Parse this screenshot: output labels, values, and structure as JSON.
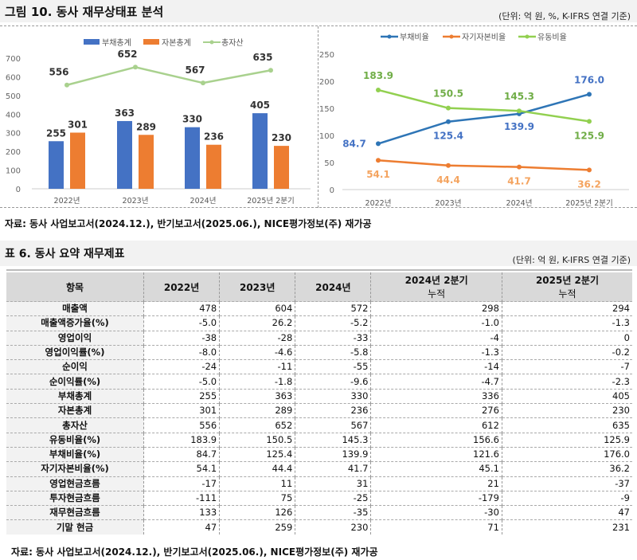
{
  "figure": {
    "title": "그림 10. 동사 재무상태표 분석",
    "unit": "(단위: 억 원, %, K-IFRS 연결 기준)",
    "source": "자료: 동사 사업보고서(2024.12.), 반기보고서(2025.06.), NICE평가정보(주) 재가공"
  },
  "chart_data": [
    {
      "type": "bar+line",
      "categories": [
        "2022년",
        "2023년",
        "2024년",
        "2025년 2분기"
      ],
      "ylim": [
        0,
        700
      ],
      "yticks": [
        0,
        100,
        200,
        300,
        400,
        500,
        600,
        700
      ],
      "legend": "top",
      "grid": false,
      "series": [
        {
          "name": "부채총계",
          "type": "bar",
          "color": "#4472c4",
          "values": [
            255,
            363,
            330,
            405
          ]
        },
        {
          "name": "자본총계",
          "type": "bar",
          "color": "#ed7d31",
          "values": [
            301,
            289,
            236,
            230
          ]
        },
        {
          "name": "총자산",
          "type": "line",
          "color": "#a9d18e",
          "values": [
            556,
            652,
            567,
            635
          ]
        }
      ]
    },
    {
      "type": "line",
      "categories": [
        "2022년",
        "2023년",
        "2024년",
        "2025년 2분기"
      ],
      "ylim": [
        0,
        250
      ],
      "yticks": [
        0,
        50,
        100,
        150,
        200,
        250
      ],
      "legend": "top",
      "grid": false,
      "series": [
        {
          "name": "부채비율",
          "color": "#2e75b6",
          "label_color": "#4472c4",
          "values": [
            84.7,
            125.4,
            139.9,
            176.0
          ]
        },
        {
          "name": "자기자본비율",
          "color": "#ed7d31",
          "label_color": "#f4a460",
          "values": [
            54.1,
            44.4,
            41.7,
            36.2
          ]
        },
        {
          "name": "유동비율",
          "color": "#92d050",
          "label_color": "#70ad47",
          "values": [
            183.9,
            150.5,
            145.3,
            125.9
          ]
        }
      ]
    }
  ],
  "table": {
    "title": "표 6. 동사 요약 재무제표",
    "unit": "(단위: 억 원, K-IFRS 연결 기준)",
    "headers": [
      [
        "항목"
      ],
      [
        "2022년"
      ],
      [
        "2023년"
      ],
      [
        "2024년"
      ],
      [
        "2024년 2분기",
        "누적"
      ],
      [
        "2025년 2분기",
        "누적"
      ]
    ],
    "rows": [
      [
        "매출액",
        "478",
        "604",
        "572",
        "298",
        "294"
      ],
      [
        "매출액증가율(%)",
        "-5.0",
        "26.2",
        "-5.2",
        "-1.0",
        "-1.3"
      ],
      [
        "영업이익",
        "-38",
        "-28",
        "-33",
        "-4",
        "0"
      ],
      [
        "영업이익률(%)",
        "-8.0",
        "-4.6",
        "-5.8",
        "-1.3",
        "-0.2"
      ],
      [
        "순이익",
        "-24",
        "-11",
        "-55",
        "-14",
        "-7"
      ],
      [
        "순이익률(%)",
        "-5.0",
        "-1.8",
        "-9.6",
        "-4.7",
        "-2.3"
      ],
      [
        "부채총계",
        "255",
        "363",
        "330",
        "336",
        "405"
      ],
      [
        "자본총계",
        "301",
        "289",
        "236",
        "276",
        "230"
      ],
      [
        "총자산",
        "556",
        "652",
        "567",
        "612",
        "635"
      ],
      [
        "유동비율(%)",
        "183.9",
        "150.5",
        "145.3",
        "156.6",
        "125.9"
      ],
      [
        "부채비율(%)",
        "84.7",
        "125.4",
        "139.9",
        "121.6",
        "176.0"
      ],
      [
        "자기자본비율(%)",
        "54.1",
        "44.4",
        "41.7",
        "45.1",
        "36.2"
      ],
      [
        "영업현금흐름",
        "-17",
        "11",
        "31",
        "21",
        "-37"
      ],
      [
        "투자현금흐름",
        "-111",
        "75",
        "-25",
        "-179",
        "-9"
      ],
      [
        "재무현금흐름",
        "133",
        "126",
        "-35",
        "-30",
        "47"
      ],
      [
        "기말 현금",
        "47",
        "259",
        "230",
        "71",
        "231"
      ]
    ],
    "source": "자료: 동사 사업보고서(2024.12.), 반기보고서(2025.06.), NICE평가정보(주) 재가공"
  }
}
